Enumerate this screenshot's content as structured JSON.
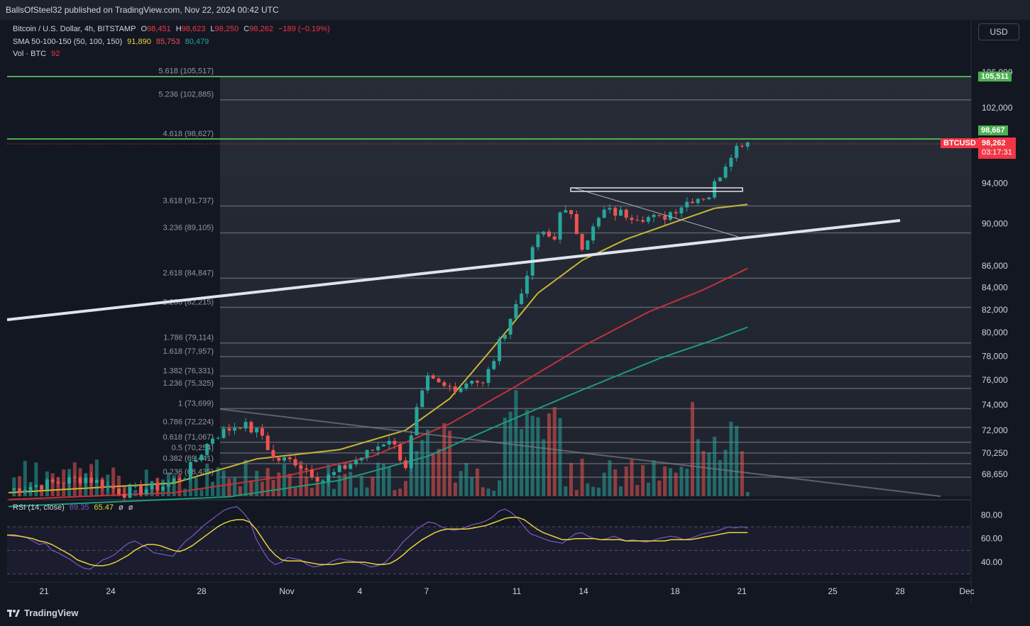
{
  "header": {
    "publisher_line": "BallsOfSteel32 published on TradingView.com, Nov 22, 2024 00:42 UTC"
  },
  "legend": {
    "symbol": "Bitcoin / U.S. Dollar, 4h, BITSTAMP",
    "o_label": "O",
    "o_value": "98,451",
    "h_label": "H",
    "h_value": "98,623",
    "l_label": "L",
    "l_value": "98,250",
    "c_label": "C",
    "c_value": "98,262",
    "change": "−189 (−0.19%)",
    "sma_label": "SMA 50-100-150 (50, 100, 150)",
    "sma50": "91,890",
    "sma100": "85,753",
    "sma150": "80,479",
    "vol_label": "Vol · BTC",
    "vol_value": "92"
  },
  "rsi_legend": {
    "label": "RSI (14, close)",
    "rsi": "69.35",
    "ma": "65.47",
    "v3": "ø",
    "v4": "ø"
  },
  "usd_button": "USD",
  "price_labels": {
    "green_top": "105,511",
    "green_mid": "98,667",
    "ticker": "BTCUSD",
    "last": "98,262",
    "countdown": "03:17:31"
  },
  "colors": {
    "bg": "#131722",
    "up": "#26a69a",
    "down": "#ef5350",
    "sma50": "#c9b635",
    "sma100": "#c2323c",
    "sma150": "#1c9b7c",
    "rsi": "#7e57c2",
    "rsi_ma": "#e8d43a",
    "green_line": "#4caf50"
  },
  "tv_brand": "TradingView",
  "chart_data": {
    "type": "candlestick",
    "title": "Bitcoin / U.S. Dollar, 4h, BITSTAMP",
    "y_axis": {
      "scale": "log",
      "ticks": [
        "106,000",
        "102,000",
        "94,000",
        "90,000",
        "86,000",
        "84,000",
        "82,000",
        "80,000",
        "78,000",
        "76,000",
        "74,000",
        "72,000",
        "70,250",
        "68,650"
      ]
    },
    "x_axis": {
      "ticks": [
        "21",
        "24",
        "28",
        "Nov",
        "4",
        "7",
        "11",
        "14",
        "18",
        "21",
        "25",
        "28",
        "Dec"
      ]
    },
    "fib_levels": [
      {
        "label": "5.618 (105,517)",
        "price": 105517
      },
      {
        "label": "5.236 (102,885)",
        "price": 102885
      },
      {
        "label": "4.618 (98,627)",
        "price": 98627
      },
      {
        "label": "3.618 (91,737)",
        "price": 91737
      },
      {
        "label": "3.236 (89,105)",
        "price": 89105
      },
      {
        "label": "2.618 (84,847)",
        "price": 84847
      },
      {
        "label": "2.236 (82,215)",
        "price": 82215
      },
      {
        "label": "1.786 (79,114)",
        "price": 79114
      },
      {
        "label": "1.618 (77,957)",
        "price": 77957
      },
      {
        "label": "1.382 (76,331)",
        "price": 76331
      },
      {
        "label": "1.236 (75,325)",
        "price": 75325
      },
      {
        "label": "1 (73,699)",
        "price": 73699
      },
      {
        "label": "0.786 (72,224)",
        "price": 72224
      },
      {
        "label": "0.618 (71,067)",
        "price": 71067
      },
      {
        "label": "0.5 (70,254)",
        "price": 70254
      },
      {
        "label": "0.382 (69,441)",
        "price": 69441
      },
      {
        "label": "0.236 (68,435)",
        "price": 68435
      }
    ],
    "price_path": [
      [
        0,
        67500
      ],
      [
        14,
        68400
      ],
      [
        21,
        67300
      ],
      [
        28,
        67800
      ],
      [
        32,
        68600
      ],
      [
        37,
        71500
      ],
      [
        42,
        72500
      ],
      [
        46,
        71600
      ],
      [
        48,
        69800
      ],
      [
        52,
        69600
      ],
      [
        57,
        68200
      ],
      [
        61,
        69200
      ],
      [
        65,
        70200
      ],
      [
        69,
        71400
      ],
      [
        72,
        69300
      ],
      [
        74,
        73500
      ],
      [
        76,
        76000
      ],
      [
        79,
        75400
      ],
      [
        82,
        75500
      ],
      [
        84,
        76200
      ],
      [
        86,
        75600
      ],
      [
        88,
        77800
      ],
      [
        90,
        80300
      ],
      [
        93,
        83500
      ],
      [
        94,
        85500
      ],
      [
        96,
        89000
      ],
      [
        99,
        88500
      ],
      [
        100,
        91500
      ],
      [
        102,
        90500
      ],
      [
        104,
        88000
      ],
      [
        106,
        89500
      ],
      [
        108,
        91200
      ],
      [
        111,
        91000
      ],
      [
        114,
        90800
      ],
      [
        118,
        90400
      ],
      [
        121,
        91500
      ],
      [
        124,
        92500
      ],
      [
        127,
        92800
      ],
      [
        129,
        95000
      ],
      [
        131,
        97200
      ],
      [
        133,
        98300
      ],
      [
        134,
        98262
      ]
    ],
    "sma50_path": [
      [
        0,
        67300
      ],
      [
        30,
        68000
      ],
      [
        45,
        69800
      ],
      [
        60,
        70500
      ],
      [
        72,
        72000
      ],
      [
        80,
        74500
      ],
      [
        88,
        78800
      ],
      [
        96,
        83500
      ],
      [
        104,
        86500
      ],
      [
        112,
        88500
      ],
      [
        120,
        90000
      ],
      [
        128,
        91500
      ],
      [
        134,
        91890
      ]
    ],
    "sma100_path": [
      [
        0,
        66800
      ],
      [
        30,
        67300
      ],
      [
        50,
        68500
      ],
      [
        66,
        70000
      ],
      [
        80,
        72500
      ],
      [
        92,
        75500
      ],
      [
        104,
        78800
      ],
      [
        116,
        81800
      ],
      [
        126,
        83800
      ],
      [
        134,
        85753
      ]
    ],
    "sma150_path": [
      [
        0,
        66300
      ],
      [
        40,
        67000
      ],
      [
        60,
        68200
      ],
      [
        76,
        70000
      ],
      [
        90,
        72600
      ],
      [
        104,
        75200
      ],
      [
        118,
        77800
      ],
      [
        128,
        79400
      ],
      [
        134,
        80479
      ]
    ],
    "rsi_values": [
      63,
      62,
      62,
      61,
      58,
      55,
      56,
      50,
      48,
      45,
      42,
      38,
      35,
      34,
      38,
      42,
      44,
      47,
      52,
      56,
      58,
      55,
      52,
      48,
      47,
      46,
      45,
      52,
      58,
      62,
      67,
      72,
      76,
      80,
      84,
      86,
      87,
      82,
      75,
      60,
      50,
      42,
      38,
      40,
      44,
      43,
      42,
      38,
      36,
      37,
      38,
      41,
      43,
      42,
      41,
      40,
      38,
      36,
      37,
      39,
      44,
      50,
      57,
      62,
      67,
      71,
      74,
      73,
      70,
      68,
      67,
      68,
      70,
      72,
      73,
      75,
      78,
      83,
      85,
      82,
      77,
      70,
      64,
      62,
      60,
      58,
      57,
      56,
      60,
      64,
      65,
      62,
      60,
      59,
      60,
      62,
      60,
      58,
      59,
      58,
      57,
      58,
      60,
      61,
      62,
      61,
      59,
      60,
      62,
      64,
      65,
      66,
      68,
      70,
      69,
      70,
      69
    ],
    "rsi_ma_values": [
      63,
      63,
      62,
      61,
      60,
      58,
      57,
      55,
      52,
      49,
      46,
      42,
      40,
      38,
      37,
      37,
      38,
      40,
      43,
      46,
      50,
      53,
      55,
      55,
      54,
      52,
      50,
      49,
      51,
      54,
      58,
      62,
      66,
      70,
      73,
      75,
      76,
      76,
      74,
      68,
      60,
      52,
      46,
      42,
      41,
      41,
      41,
      40,
      39,
      38,
      38,
      38,
      39,
      40,
      40,
      40,
      40,
      39,
      38,
      38,
      39,
      42,
      46,
      51,
      55,
      59,
      62,
      65,
      67,
      68,
      68,
      68,
      68,
      69,
      70,
      71,
      73,
      75,
      77,
      78,
      78,
      76,
      72,
      68,
      65,
      63,
      61,
      59,
      59,
      60,
      60,
      60,
      60,
      59,
      59,
      59,
      59,
      58,
      58,
      58,
      58,
      58,
      58,
      58,
      59,
      59,
      59,
      59,
      60,
      61,
      62,
      63,
      64,
      65,
      65,
      65,
      65
    ],
    "rsi_axis": {
      "ticks": [
        "80.00",
        "60.00",
        "40.00"
      ],
      "bands": [
        70,
        50,
        30
      ]
    }
  }
}
